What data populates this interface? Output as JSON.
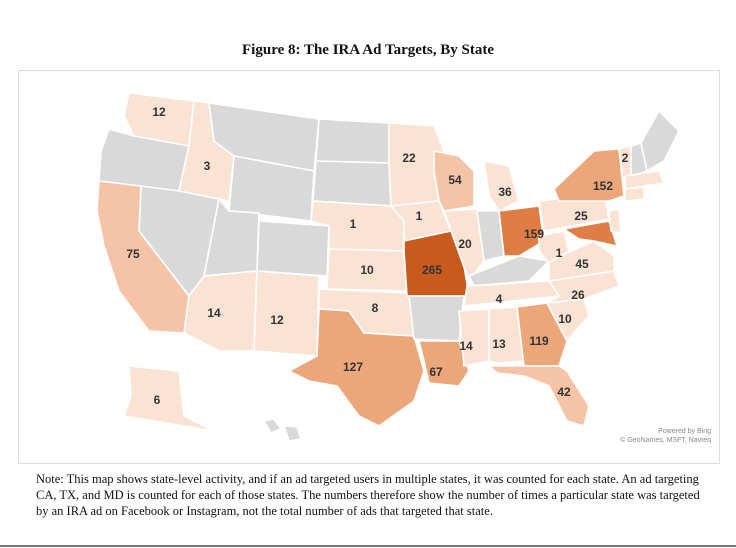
{
  "title": "Figure 8: The IRA Ad Targets, By State",
  "note": "Note: This map shows state-level activity, and if an ad targeted users in multiple states, it was counted for each state. An ad targeting CA, TX, and MD is counted for each of those states. The numbers therefore show the number of times a particular state was targeted by an IRA ad on Facebook or Instagram, not the total number of ads that targeted that state.",
  "credit": {
    "line1": "Powered by Bing",
    "line2": "© GeoNames, MSFT, Navteq"
  },
  "colors": {
    "no_data": "#d9d9d9",
    "low": "#fbe3d4",
    "mid_low": "#f5c4a6",
    "mid": "#eba67a",
    "high": "#e07d45",
    "max": "#c85a1e"
  },
  "state_values": [
    {
      "state": "WA",
      "value": "12"
    },
    {
      "state": "ID",
      "value": "3"
    },
    {
      "state": "CA",
      "value": "75"
    },
    {
      "state": "MN",
      "value": "22"
    },
    {
      "state": "WI",
      "value": "54"
    },
    {
      "state": "MI",
      "value": "36"
    },
    {
      "state": "VT",
      "value": "2"
    },
    {
      "state": "NY",
      "value": "152"
    },
    {
      "state": "NE",
      "value": "1"
    },
    {
      "state": "IA",
      "value": "1"
    },
    {
      "state": "IL",
      "value": "20"
    },
    {
      "state": "OH",
      "value": "159"
    },
    {
      "state": "PA",
      "value": "25"
    },
    {
      "state": "KS",
      "value": "10"
    },
    {
      "state": "MO",
      "value": "265"
    },
    {
      "state": "WV",
      "value": "1"
    },
    {
      "state": "MD",
      "value": "45"
    },
    {
      "state": "TN",
      "value": "4"
    },
    {
      "state": "NC",
      "value": "26"
    },
    {
      "state": "OK",
      "value": "8"
    },
    {
      "state": "AZ",
      "value": "14"
    },
    {
      "state": "NM",
      "value": "12"
    },
    {
      "state": "SC",
      "value": "10"
    },
    {
      "state": "MS",
      "value": "14"
    },
    {
      "state": "AL",
      "value": "13"
    },
    {
      "state": "GA",
      "value": "119"
    },
    {
      "state": "TX",
      "value": "127"
    },
    {
      "state": "LA",
      "value": "67"
    },
    {
      "state": "AK",
      "value": "6"
    },
    {
      "state": "FL",
      "value": "42"
    }
  ]
}
